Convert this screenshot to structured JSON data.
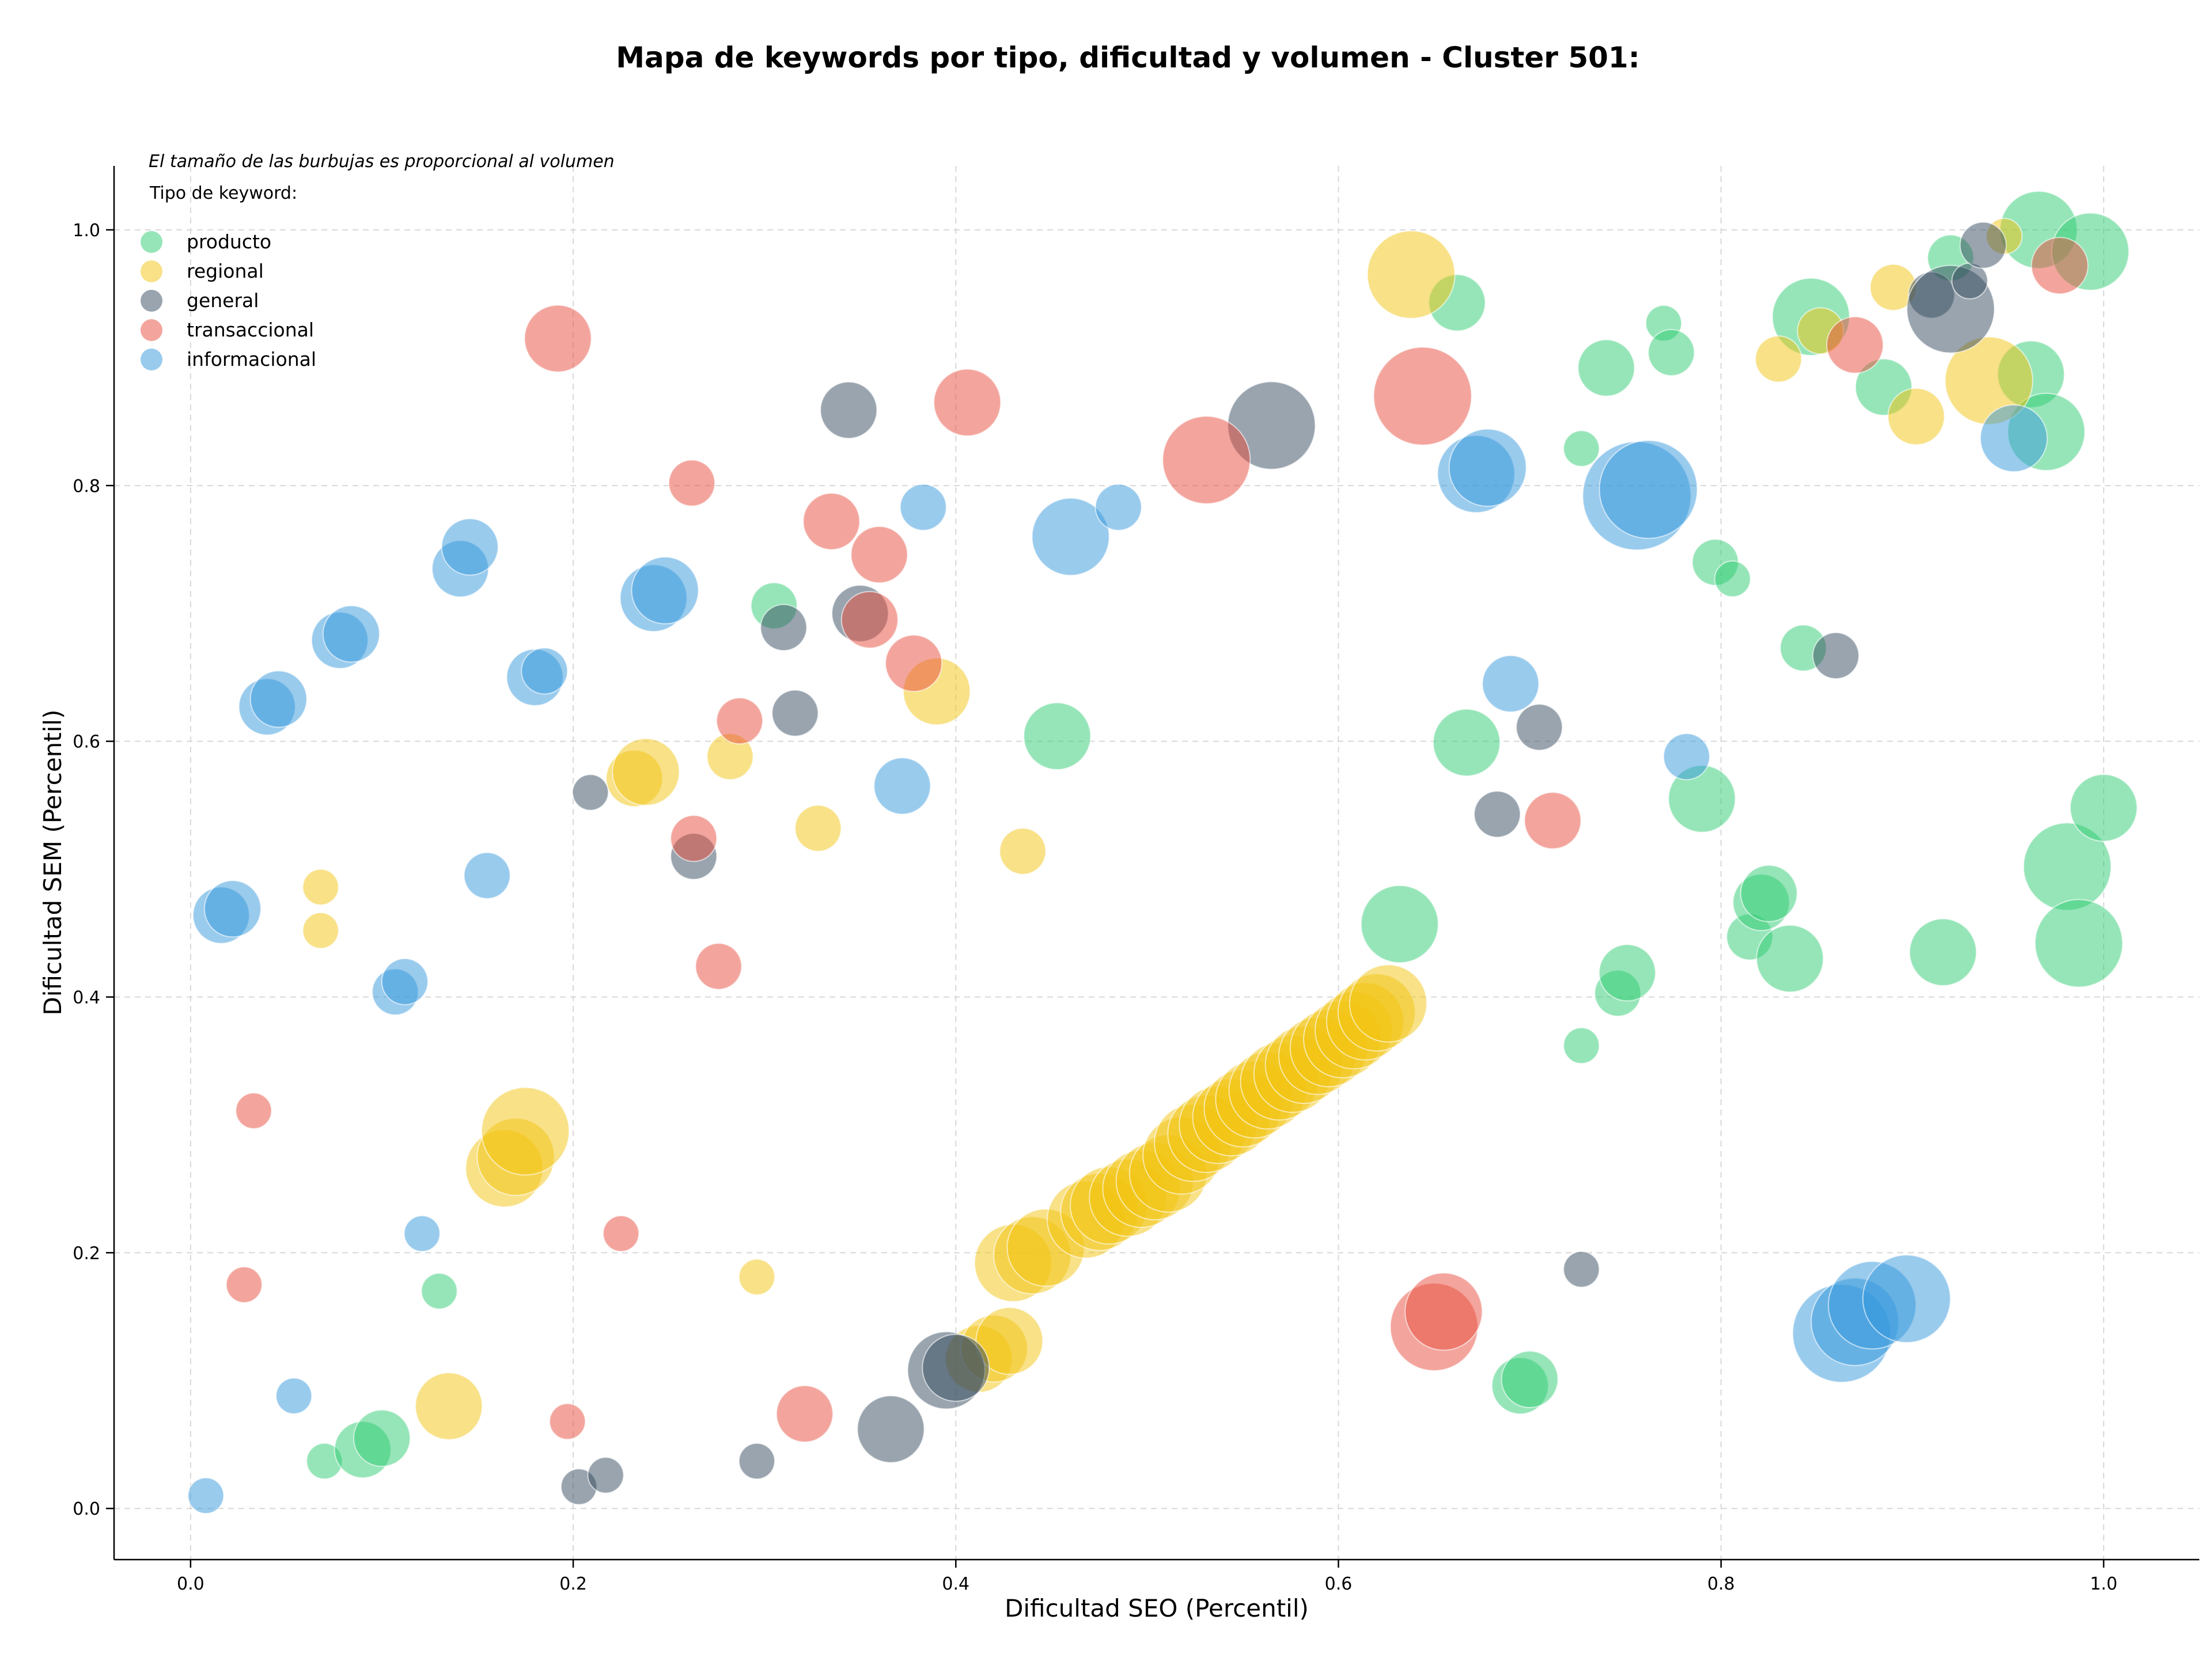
{
  "chart_data": {
    "type": "scatter",
    "title": "Mapa de keywords por tipo, dificultad y volumen - Cluster 501:",
    "xlabel": "Dificultad SEO (Percentil)",
    "ylabel": "Dificultad SEM (Percentil)",
    "xlim": [
      -0.04,
      1.05
    ],
    "ylim": [
      -0.04,
      1.05
    ],
    "xticks": [
      "0.0",
      "0.2",
      "0.4",
      "0.6",
      "0.8",
      "1.0"
    ],
    "yticks": [
      "0.0",
      "0.2",
      "0.4",
      "0.6",
      "0.8",
      "1.0"
    ],
    "grid": true,
    "legend_note": "El tamaño de las burbujas es proporcional al volumen",
    "legend_title": "Tipo de keyword:",
    "legend_placement": "top-left",
    "series": [
      {
        "name": "producto",
        "color": "#2ecc71",
        "points": [
          [
            0.07,
            0.037,
            1
          ],
          [
            0.09,
            0.046,
            3
          ],
          [
            0.1,
            0.055,
            3
          ],
          [
            0.13,
            0.17,
            1
          ],
          [
            0.305,
            0.706,
            2
          ],
          [
            0.453,
            0.604,
            4
          ],
          [
            0.632,
            0.457,
            5
          ],
          [
            0.662,
            0.943,
            3
          ],
          [
            0.667,
            0.599,
            4
          ],
          [
            0.695,
            0.096,
            3
          ],
          [
            0.7,
            0.101,
            3
          ],
          [
            0.727,
            0.362,
            1
          ],
          [
            0.727,
            0.829,
            1
          ],
          [
            0.74,
            0.892,
            3
          ],
          [
            0.746,
            0.403,
            2
          ],
          [
            0.751,
            0.419,
            3
          ],
          [
            0.77,
            0.927,
            1
          ],
          [
            0.774,
            0.904,
            2
          ],
          [
            0.79,
            0.555,
            4
          ],
          [
            0.797,
            0.74,
            2
          ],
          [
            0.806,
            0.727,
            1
          ],
          [
            0.815,
            0.447,
            2
          ],
          [
            0.821,
            0.474,
            3
          ],
          [
            0.825,
            0.481,
            3
          ],
          [
            0.836,
            0.43,
            4
          ],
          [
            0.843,
            0.673,
            2
          ],
          [
            0.847,
            0.932,
            5
          ],
          [
            0.885,
            0.877,
            3
          ],
          [
            0.92,
            0.978,
            2
          ],
          [
            0.916,
            0.435,
            4
          ],
          [
            0.962,
            0.887,
            4
          ],
          [
            0.97,
            0.842,
            5
          ],
          [
            0.966,
            1.0,
            5
          ],
          [
            0.981,
            0.502,
            6
          ],
          [
            0.993,
            0.983,
            5
          ],
          [
            0.987,
            0.442,
            6
          ],
          [
            1.0,
            0.548,
            4
          ]
        ]
      },
      {
        "name": "regional",
        "color": "#f1c40f",
        "points": [
          [
            0.068,
            0.486,
            1
          ],
          [
            0.068,
            0.452,
            1
          ],
          [
            0.135,
            0.08,
            4
          ],
          [
            0.164,
            0.266,
            5
          ],
          [
            0.17,
            0.275,
            5
          ],
          [
            0.175,
            0.295,
            6
          ],
          [
            0.232,
            0.571,
            3
          ],
          [
            0.238,
            0.576,
            4
          ],
          [
            0.282,
            0.588,
            2
          ],
          [
            0.296,
            0.181,
            1
          ],
          [
            0.328,
            0.532,
            2
          ],
          [
            0.39,
            0.639,
            4
          ],
          [
            0.435,
            0.514,
            2
          ],
          [
            0.638,
            0.965,
            6
          ],
          [
            0.83,
            0.899,
            2
          ],
          [
            0.852,
            0.921,
            2
          ],
          [
            0.89,
            0.955,
            2
          ],
          [
            0.902,
            0.854,
            3
          ],
          [
            0.94,
            0.882,
            6
          ],
          [
            0.948,
            0.995,
            1
          ],
          [
            0.412,
            0.117,
            4
          ],
          [
            0.42,
            0.125,
            4
          ],
          [
            0.428,
            0.131,
            4
          ],
          [
            0.43,
            0.192,
            5
          ],
          [
            0.44,
            0.198,
            5
          ],
          [
            0.447,
            0.204,
            5
          ],
          [
            0.468,
            0.226,
            5
          ],
          [
            0.475,
            0.232,
            5
          ],
          [
            0.48,
            0.237,
            5
          ],
          [
            0.49,
            0.243,
            5
          ],
          [
            0.497,
            0.25,
            5
          ],
          [
            0.504,
            0.256,
            5
          ],
          [
            0.511,
            0.262,
            5
          ],
          [
            0.518,
            0.276,
            5
          ],
          [
            0.524,
            0.286,
            5
          ],
          [
            0.531,
            0.293,
            5
          ],
          [
            0.537,
            0.3,
            5
          ],
          [
            0.544,
            0.306,
            5
          ],
          [
            0.55,
            0.313,
            5
          ],
          [
            0.556,
            0.32,
            5
          ],
          [
            0.563,
            0.327,
            5
          ],
          [
            0.569,
            0.334,
            5
          ],
          [
            0.576,
            0.34,
            5
          ],
          [
            0.582,
            0.347,
            5
          ],
          [
            0.589,
            0.354,
            5
          ],
          [
            0.595,
            0.36,
            5
          ],
          [
            0.602,
            0.367,
            5
          ],
          [
            0.608,
            0.374,
            5
          ],
          [
            0.614,
            0.381,
            5
          ],
          [
            0.62,
            0.388,
            5
          ],
          [
            0.626,
            0.395,
            5
          ]
        ]
      },
      {
        "name": "general",
        "color": "#34495e",
        "points": [
          [
            0.203,
            0.017,
            1
          ],
          [
            0.209,
            0.56,
            1
          ],
          [
            0.217,
            0.026,
            1
          ],
          [
            0.263,
            0.51,
            2
          ],
          [
            0.296,
            0.037,
            1
          ],
          [
            0.31,
            0.689,
            2
          ],
          [
            0.316,
            0.622,
            2
          ],
          [
            0.344,
            0.859,
            3
          ],
          [
            0.35,
            0.7,
            3
          ],
          [
            0.366,
            0.062,
            4
          ],
          [
            0.395,
            0.108,
            5
          ],
          [
            0.4,
            0.11,
            4
          ],
          [
            0.565,
            0.847,
            6
          ],
          [
            0.683,
            0.543,
            2
          ],
          [
            0.705,
            0.611,
            2
          ],
          [
            0.727,
            0.187,
            1
          ],
          [
            0.86,
            0.667,
            2
          ],
          [
            0.91,
            0.949,
            2
          ],
          [
            0.92,
            0.938,
            6
          ],
          [
            0.93,
            0.96,
            1
          ],
          [
            0.937,
            0.988,
            2
          ]
        ]
      },
      {
        "name": "transaccional",
        "color": "#e74c3c",
        "points": [
          [
            0.028,
            0.175,
            1
          ],
          [
            0.033,
            0.311,
            1
          ],
          [
            0.192,
            0.915,
            4
          ],
          [
            0.197,
            0.068,
            1
          ],
          [
            0.225,
            0.215,
            1
          ],
          [
            0.262,
            0.802,
            2
          ],
          [
            0.263,
            0.524,
            2
          ],
          [
            0.276,
            0.424,
            2
          ],
          [
            0.287,
            0.616,
            2
          ],
          [
            0.321,
            0.074,
            3
          ],
          [
            0.335,
            0.772,
            3
          ],
          [
            0.355,
            0.695,
            3
          ],
          [
            0.36,
            0.746,
            3
          ],
          [
            0.378,
            0.661,
            3
          ],
          [
            0.406,
            0.865,
            4
          ],
          [
            0.531,
            0.82,
            6
          ],
          [
            0.644,
            0.87,
            7
          ],
          [
            0.65,
            0.142,
            6
          ],
          [
            0.655,
            0.154,
            5
          ],
          [
            0.712,
            0.538,
            3
          ],
          [
            0.87,
            0.91,
            3
          ],
          [
            0.977,
            0.972,
            3
          ]
        ]
      },
      {
        "name": "informacional",
        "color": "#3498db",
        "points": [
          [
            0.008,
            0.01,
            1
          ],
          [
            0.016,
            0.464,
            3
          ],
          [
            0.022,
            0.469,
            3
          ],
          [
            0.04,
            0.627,
            3
          ],
          [
            0.046,
            0.633,
            3
          ],
          [
            0.054,
            0.088,
            1
          ],
          [
            0.078,
            0.679,
            3
          ],
          [
            0.084,
            0.684,
            3
          ],
          [
            0.107,
            0.404,
            2
          ],
          [
            0.112,
            0.412,
            2
          ],
          [
            0.121,
            0.215,
            1
          ],
          [
            0.141,
            0.735,
            3
          ],
          [
            0.146,
            0.752,
            3
          ],
          [
            0.155,
            0.495,
            2
          ],
          [
            0.18,
            0.65,
            3
          ],
          [
            0.185,
            0.655,
            2
          ],
          [
            0.242,
            0.712,
            4
          ],
          [
            0.248,
            0.718,
            4
          ],
          [
            0.372,
            0.565,
            3
          ],
          [
            0.383,
            0.783,
            2
          ],
          [
            0.46,
            0.76,
            5
          ],
          [
            0.485,
            0.783,
            2
          ],
          [
            0.672,
            0.809,
            5
          ],
          [
            0.678,
            0.814,
            5
          ],
          [
            0.69,
            0.645,
            3
          ],
          [
            0.756,
            0.792,
            8
          ],
          [
            0.762,
            0.797,
            7
          ],
          [
            0.782,
            0.588,
            2
          ],
          [
            0.863,
            0.137,
            7
          ],
          [
            0.87,
            0.146,
            6
          ],
          [
            0.879,
            0.159,
            6
          ],
          [
            0.897,
            0.164,
            6
          ],
          [
            0.953,
            0.837,
            4
          ]
        ]
      }
    ]
  }
}
